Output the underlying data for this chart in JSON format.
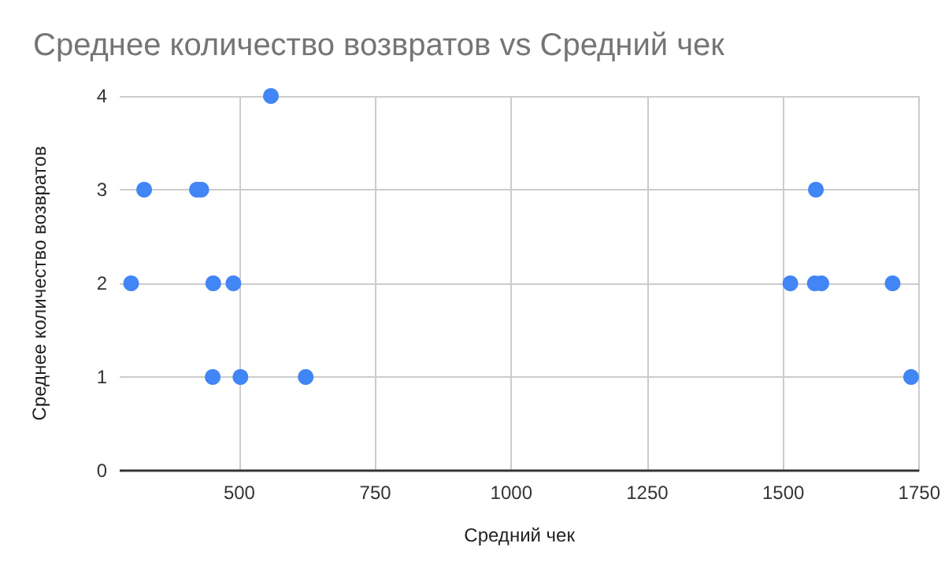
{
  "chart_data": {
    "type": "scatter",
    "title": "Среднее количество возвратов vs Средний чек",
    "xlabel": "Средний чек",
    "ylabel": "Среднее количество возвратов",
    "x": [
      301,
      325,
      422,
      430,
      452,
      489,
      451,
      502,
      558,
      622,
      1513,
      1560,
      1558,
      1570,
      1701,
      1735
    ],
    "series": [
      {
        "color": "#4285f4",
        "values": [
          2,
          3,
          3,
          3,
          2,
          2,
          1,
          1,
          4,
          1,
          2,
          3,
          2,
          2,
          2,
          1
        ]
      }
    ],
    "xlim": [
      280,
      1750
    ],
    "xticks": [
      500,
      750,
      1000,
      1250,
      1500,
      1750
    ],
    "ylim": [
      0,
      4
    ],
    "yticks": [
      0,
      1,
      2,
      3,
      4
    ],
    "grid": true,
    "marker": "circle",
    "legend": false
  }
}
